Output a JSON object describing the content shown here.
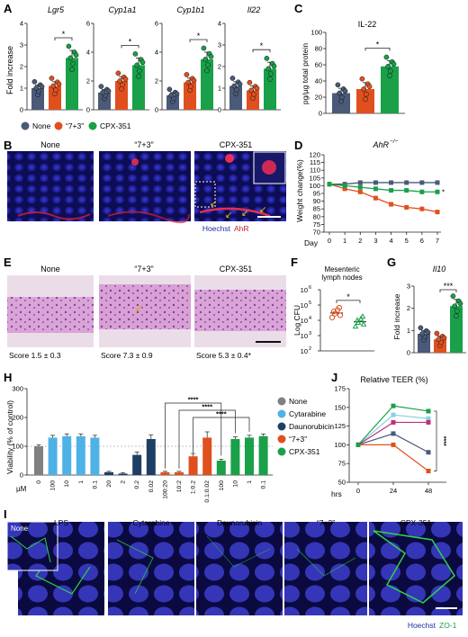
{
  "panels": {
    "A": "A",
    "B": "B",
    "C": "C",
    "D": "D",
    "E": "E",
    "F": "F",
    "G": "G",
    "H": "H",
    "I": "I",
    "J": "J"
  },
  "colors": {
    "none": "#4a5a78",
    "seven": "#e0501f",
    "cpx": "#19a049",
    "cytarabine": "#4fb2e6",
    "daunorubicin": "#1d3f66",
    "grey": "#808080",
    "dark": "#333333"
  },
  "legend": {
    "none": "None",
    "seven": "“7+3”",
    "cpx": "CPX-351",
    "cytarabine": "Cytarabine",
    "daunorubicin": "Daunorubicin"
  },
  "panel_a": {
    "ylabel": "Fold increase",
    "genes": [
      "Lgr5",
      "Cyp1a1",
      "Cyp1b1",
      "Il22"
    ],
    "sig": "*"
  },
  "panel_b": {
    "cols": [
      "None",
      "“7+3”",
      "CPX-351"
    ],
    "stain1": "Hoechst",
    "stain2": "AhR"
  },
  "panel_c": {
    "title": "IL-22",
    "ylabel": "pg/µg total protein",
    "sig": "*"
  },
  "panel_d": {
    "title": "AhR",
    "title_sup": "−/−",
    "ylabel": "Weight change(%)",
    "xlabel": "Day",
    "sig": "*"
  },
  "panel_e": {
    "cols": [
      "None",
      "“7+3”",
      "CPX-351"
    ],
    "scores": [
      "Score 1.5 ± 0.3",
      "Score 7.3 ± 0.9",
      "Score 5.3 ± 0.4*"
    ]
  },
  "panel_f": {
    "title_line1": "Mesenteric",
    "title_line2": "lymph nodes",
    "ylabel": "Log CFU",
    "sig": "*"
  },
  "panel_g": {
    "title": "Il10",
    "ylabel": "Fold increase",
    "sig": "***"
  },
  "panel_h": {
    "ylabel": "Viability (% of control)",
    "xunit": "µM",
    "sig": "****"
  },
  "panel_i": {
    "cols": [
      "LPS",
      "Cytarabine",
      "Daunorubicin",
      "“7+3”",
      "CPX-351"
    ],
    "inset": "None",
    "stain1": "Hoechst",
    "stain2": "ZO-1"
  },
  "panel_j": {
    "title": "Relative TEER (%)",
    "xunit": "hrs",
    "sig": "****"
  },
  "chart_data": [
    {
      "panel": "A",
      "type": "bar",
      "ylabel": "Fold increase",
      "subplots": [
        {
          "title": "Lgr5",
          "categories": [
            "None",
            "“7+3”",
            "CPX-351"
          ],
          "values": [
            1.0,
            1.1,
            2.4
          ],
          "errors": [
            0.15,
            0.2,
            0.35
          ],
          "ylim": [
            0,
            4
          ],
          "yticks": [
            0,
            1,
            2,
            3,
            4
          ]
        },
        {
          "title": "Cyp1a1",
          "categories": [
            "None",
            "“7+3”",
            "CPX-351"
          ],
          "values": [
            1.2,
            2.0,
            3.1
          ],
          "errors": [
            0.2,
            0.3,
            0.5
          ],
          "ylim": [
            0,
            6
          ],
          "yticks": [
            0,
            2,
            4,
            6
          ]
        },
        {
          "title": "Cyp1b1",
          "categories": [
            "None",
            "“7+3”",
            "CPX-351"
          ],
          "values": [
            1.0,
            1.9,
            3.5
          ],
          "errors": [
            0.2,
            0.3,
            0.5
          ],
          "ylim": [
            0,
            6
          ],
          "yticks": [
            0,
            2,
            4,
            6
          ]
        },
        {
          "title": "Il22",
          "categories": [
            "None",
            "“7+3”",
            "CPX-351"
          ],
          "values": [
            1.1,
            0.9,
            1.9
          ],
          "errors": [
            0.2,
            0.2,
            0.3
          ],
          "ylim": [
            0,
            4
          ],
          "yticks": [
            0,
            1,
            2,
            3,
            4
          ]
        }
      ]
    },
    {
      "panel": "C",
      "type": "bar",
      "title": "IL-22",
      "ylabel": "pg/µg total protein",
      "categories": [
        "None",
        "“7+3”",
        "CPX-351"
      ],
      "values": [
        25,
        30,
        58
      ],
      "errors": [
        6,
        8,
        7
      ],
      "ylim": [
        0,
        100
      ],
      "yticks": [
        0,
        20,
        40,
        60,
        80,
        100
      ]
    },
    {
      "panel": "D",
      "type": "line",
      "title": "AhR−/−",
      "xlabel": "Day",
      "ylabel": "Weight change(%)",
      "x": [
        0,
        1,
        2,
        3,
        4,
        5,
        6,
        7
      ],
      "ylim": [
        70,
        120
      ],
      "yticks": [
        70,
        75,
        80,
        85,
        90,
        95,
        100,
        105,
        110,
        115,
        120
      ],
      "series": [
        {
          "name": "None",
          "values": [
            101,
            101,
            102,
            102,
            102,
            102,
            102,
            102
          ]
        },
        {
          "name": "“7+3”",
          "values": [
            101,
            98,
            96,
            92,
            88,
            86,
            85,
            83
          ]
        },
        {
          "name": "CPX-351",
          "values": [
            101,
            100,
            99,
            98,
            97,
            97,
            96,
            96
          ]
        }
      ]
    },
    {
      "panel": "F",
      "type": "scatter",
      "title": "Mesenteric lymph nodes",
      "ylabel": "Log CFU",
      "categories": [
        "“7+3”",
        "CPX-351"
      ],
      "log_y": true,
      "ylim": [
        100,
        1000000
      ],
      "ytick_exponents": [
        2,
        3,
        4,
        5,
        6
      ],
      "values": [
        30000,
        8000
      ]
    },
    {
      "panel": "G",
      "type": "bar",
      "title": "Il10",
      "ylabel": "Fold increase",
      "categories": [
        "None",
        "“7+3”",
        "CPX-351"
      ],
      "values": [
        0.85,
        0.6,
        2.1
      ],
      "errors": [
        0.15,
        0.15,
        0.3
      ],
      "ylim": [
        0,
        3
      ],
      "yticks": [
        0,
        1,
        2,
        3
      ]
    },
    {
      "panel": "H",
      "type": "bar",
      "ylabel": "Viability (% of control)",
      "xunit": "µM",
      "ylim": [
        0,
        300
      ],
      "yticks": [
        0,
        100,
        200,
        300
      ],
      "categories": [
        "0",
        "100",
        "10",
        "1",
        "0.1",
        "20",
        "2",
        "0.2",
        "0.02",
        "100:20",
        "10:2",
        "1:0.2",
        "0.1:0.02",
        "100",
        "10",
        "1",
        "0.1"
      ],
      "groups": [
        "None",
        "Cytarabine",
        "Cytarabine",
        "Cytarabine",
        "Cytarabine",
        "Daunorubicin",
        "Daunorubicin",
        "Daunorubicin",
        "Daunorubicin",
        "“7+3”",
        "“7+3”",
        "“7+3”",
        "“7+3”",
        "CPX-351",
        "CPX-351",
        "CPX-351",
        "CPX-351"
      ],
      "values": [
        100,
        130,
        135,
        135,
        130,
        10,
        5,
        70,
        125,
        10,
        10,
        65,
        130,
        50,
        125,
        130,
        135
      ],
      "errors": [
        5,
        8,
        8,
        8,
        8,
        3,
        3,
        10,
        15,
        3,
        3,
        10,
        20,
        5,
        8,
        8,
        8
      ]
    },
    {
      "panel": "J",
      "type": "line",
      "title": "Relative TEER (%)",
      "xunit": "hrs",
      "x": [
        0,
        24,
        48
      ],
      "ylim": [
        50,
        175
      ],
      "yticks": [
        50,
        75,
        100,
        125,
        150,
        175
      ],
      "series": [
        {
          "name": "None",
          "values": [
            100,
            115,
            90
          ]
        },
        {
          "name": "Cytarabine",
          "values": [
            100,
            140,
            135
          ]
        },
        {
          "name": "Daunorubicin",
          "values": [
            100,
            130,
            130
          ]
        },
        {
          "name": "“7+3”",
          "values": [
            100,
            100,
            65
          ]
        },
        {
          "name": "CPX-351",
          "values": [
            100,
            152,
            145
          ]
        }
      ]
    }
  ]
}
